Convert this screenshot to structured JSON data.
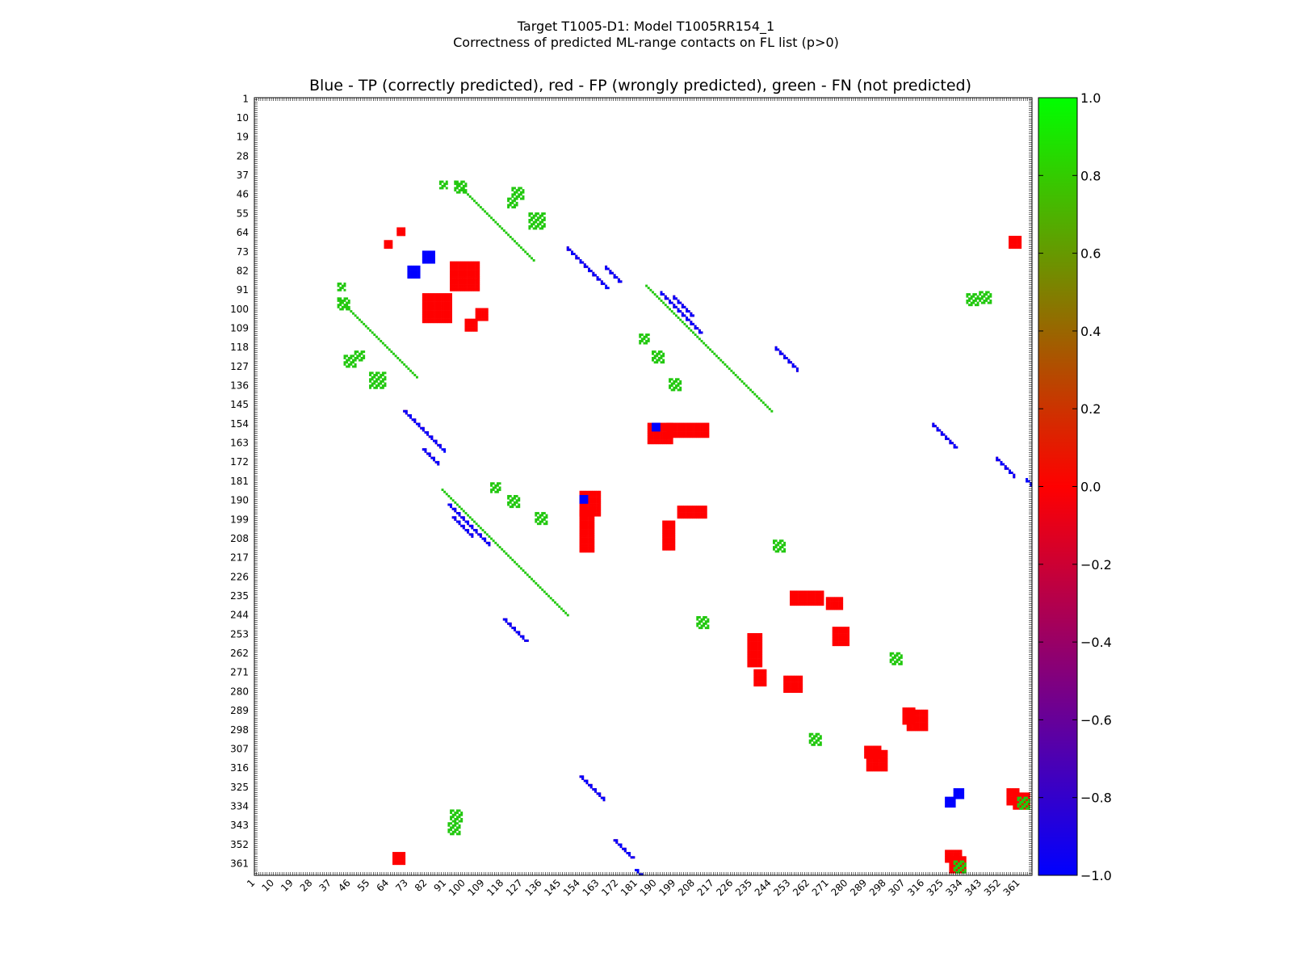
{
  "figure": {
    "suptitle_line1": "Target T1005-D1: Model T1005RR154_1",
    "suptitle_line2": "Correctness of predicted ML-range contacts on FL list (p>0)",
    "axes_title": "Blue - TP (correctly predicted), red - FP (wrongly predicted), green - FN (not predicted)"
  },
  "colors": {
    "tp": "#0000ff",
    "fp": "#ff0000",
    "fn": "#22c80f",
    "colorbar_top": "#00ff00",
    "colorbar_mid": "#ff0000",
    "colorbar_bottom": "#0000ff"
  },
  "chart_data": {
    "type": "heatmap",
    "title": "Blue - TP (correctly predicted), red - FP (wrongly predicted), green - FN (not predicted)",
    "xlabel": "",
    "ylabel": "",
    "xlim": [
      1,
      367
    ],
    "ylim": [
      1,
      367
    ],
    "ticks": [
      "1",
      "10",
      "19",
      "28",
      "37",
      "46",
      "55",
      "64",
      "73",
      "82",
      "91",
      "100",
      "109",
      "118",
      "127",
      "136",
      "145",
      "154",
      "163",
      "172",
      "181",
      "190",
      "199",
      "208",
      "217",
      "226",
      "235",
      "244",
      "253",
      "262",
      "271",
      "280",
      "289",
      "298",
      "307",
      "316",
      "325",
      "334",
      "343",
      "352",
      "361"
    ],
    "colorbar": {
      "min": -1.0,
      "max": 1.0,
      "ticks": [
        "1.0",
        "0.8",
        "0.6",
        "0.4",
        "0.2",
        "0.0",
        "−0.2",
        "−0.4",
        "−0.6",
        "−0.8",
        "−1.0"
      ],
      "tick_values": [
        1.0,
        0.8,
        0.6,
        0.4,
        0.2,
        0.0,
        -0.2,
        -0.4,
        -0.6,
        -0.8,
        -1.0
      ]
    },
    "legend": [
      {
        "label": "TP (correctly predicted)",
        "value": -1.0,
        "color": "blue"
      },
      {
        "label": "FP (wrongly predicted)",
        "value": 0.0,
        "color": "red"
      },
      {
        "label": "FN (not predicted)",
        "value": 1.0,
        "color": "green"
      }
    ],
    "diagonal_bands": {
      "tp": [
        [
          71,
          77,
          20
        ],
        [
          92,
          100,
          20
        ],
        [
          80,
          86,
          8
        ],
        [
          94,
          104,
          10
        ],
        [
          118,
          128,
          11
        ],
        [
          180,
          184,
          12
        ],
        [
          186,
          196,
          14
        ],
        [
          154,
          166,
          12
        ],
        [
          170,
          180,
          9
        ],
        [
          211,
          229,
          14
        ],
        [
          279,
          283,
          13
        ],
        [
          321,
          327,
          7
        ],
        [
          266,
          276,
          16
        ],
        [
          288,
          298,
          11
        ],
        [
          325,
          328,
          18
        ],
        [
          233,
          240,
          22
        ],
        [
          218,
          226,
          17
        ]
      ],
      "fp": [
        [
          71,
          77,
          18
        ],
        [
          92,
          100,
          20
        ],
        [
          80,
          86,
          8
        ],
        [
          94,
          104,
          10
        ],
        [
          118,
          128,
          11
        ],
        [
          186,
          196,
          14
        ],
        [
          154,
          166,
          12
        ],
        [
          170,
          180,
          9
        ],
        [
          211,
          229,
          14
        ],
        [
          279,
          283,
          13
        ],
        [
          266,
          276,
          16
        ],
        [
          288,
          298,
          11
        ],
        [
          325,
          328,
          18
        ],
        [
          233,
          240,
          22
        ],
        [
          218,
          226,
          17
        ]
      ],
      "fn": [
        [
          89,
          96,
          60
        ],
        [
          40,
          55,
          38
        ],
        [
          300,
          308,
          14
        ]
      ]
    },
    "fp_blobs": [
      [
        93,
        78,
        14,
        14
      ],
      [
        80,
        93,
        14,
        14
      ],
      [
        154,
        186,
        10,
        12
      ],
      [
        186,
        154,
        12,
        10
      ],
      [
        195,
        154,
        20,
        7
      ],
      [
        154,
        195,
        7,
        20
      ],
      [
        200,
        193,
        14,
        6
      ],
      [
        193,
        200,
        6,
        14
      ],
      [
        253,
        233,
        16,
        7
      ],
      [
        233,
        253,
        7,
        16
      ],
      [
        273,
        250,
        8,
        9
      ],
      [
        250,
        273,
        9,
        8
      ],
      [
        289,
        308,
        10,
        10
      ],
      [
        308,
        289,
        10,
        10
      ],
      [
        306,
        288,
        6,
        8
      ],
      [
        288,
        306,
        8,
        6
      ],
      [
        358,
        328,
        8,
        8
      ],
      [
        328,
        358,
        8,
        8
      ],
      [
        326,
        355,
        8,
        6
      ],
      [
        355,
        326,
        6,
        8
      ],
      [
        236,
        270,
        6,
        8
      ],
      [
        270,
        236,
        8,
        6
      ],
      [
        66,
        356,
        6,
        6
      ],
      [
        356,
        66,
        6,
        6
      ],
      [
        68,
        62,
        4,
        4
      ],
      [
        62,
        68,
        4,
        4
      ],
      [
        105,
        100,
        6,
        6
      ],
      [
        100,
        105,
        6,
        6
      ]
    ],
    "tp_blobs": [
      [
        73,
        80,
        6,
        6
      ],
      [
        80,
        73,
        6,
        6
      ],
      [
        188,
        154,
        4,
        4
      ],
      [
        154,
        188,
        4,
        4
      ],
      [
        326,
        330,
        5,
        5
      ],
      [
        330,
        326,
        5,
        5
      ]
    ],
    "fn_blobs": [
      [
        40,
        88,
        4,
        4
      ],
      [
        88,
        40,
        4,
        4
      ],
      [
        95,
        40,
        6,
        6
      ],
      [
        40,
        95,
        6,
        6
      ],
      [
        48,
        120,
        5,
        5
      ],
      [
        120,
        48,
        5,
        5
      ],
      [
        130,
        55,
        8,
        8
      ],
      [
        55,
        130,
        8,
        8
      ],
      [
        188,
        120,
        6,
        6
      ],
      [
        120,
        188,
        6,
        6
      ],
      [
        196,
        133,
        6,
        6
      ],
      [
        133,
        196,
        6,
        6
      ],
      [
        122,
        43,
        6,
        6
      ],
      [
        43,
        122,
        6,
        6
      ],
      [
        182,
        112,
        5,
        5
      ],
      [
        112,
        182,
        5,
        5
      ],
      [
        245,
        209,
        6,
        6
      ],
      [
        209,
        245,
        6,
        6
      ],
      [
        300,
        262,
        6,
        6
      ],
      [
        262,
        300,
        6,
        6
      ],
      [
        330,
        360,
        6,
        6
      ],
      [
        360,
        330,
        6,
        6
      ],
      [
        342,
        92,
        6,
        6
      ],
      [
        92,
        342,
        6,
        6
      ],
      [
        93,
        336,
        6,
        6
      ],
      [
        336,
        93,
        6,
        6
      ]
    ]
  }
}
